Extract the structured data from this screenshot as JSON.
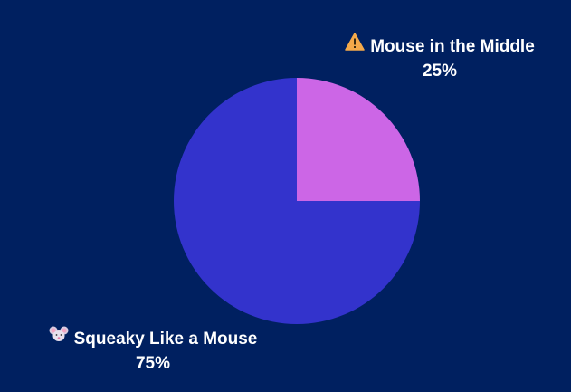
{
  "chart_data": {
    "type": "pie",
    "title": "",
    "categories": [
      "Mouse in the Middle",
      "Squeaky Like a Mouse"
    ],
    "values": [
      25,
      75
    ],
    "labels": [
      "25%",
      "75%"
    ],
    "icons": [
      "warning-icon",
      "mouse-face-icon"
    ],
    "colors": [
      "#CC66E6",
      "#3333CC"
    ],
    "start_angle": "12 o'clock, clockwise",
    "legend": "none (data labels outside slices)"
  },
  "colors": {
    "background": "#002060",
    "label_text": "#FFFFFF"
  },
  "labels": {
    "middle": {
      "icon": "⚠️",
      "name": "Mouse in the Middle",
      "pct": "25%"
    },
    "squeaky": {
      "icon": "🐭",
      "name": "Squeaky Like a Mouse",
      "pct": "75%"
    }
  }
}
